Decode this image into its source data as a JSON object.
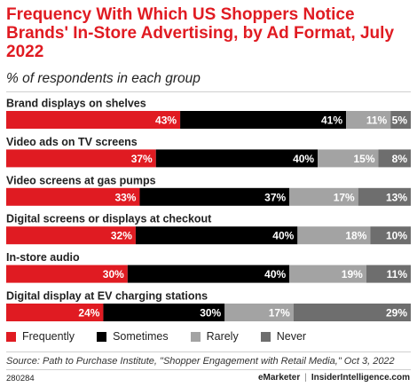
{
  "title": "Frequency With Which US Shoppers Notice Brands' In-Store Advertising, by Ad Format, July 2022",
  "subtitle": "% of respondents in each group",
  "chart_data": {
    "type": "bar",
    "orientation": "horizontal",
    "stacked": true,
    "value_format": "percent",
    "categories": [
      "Brand displays on shelves",
      "Video ads on TV screens",
      "Video screens at gas pumps",
      "Digital screens or displays at checkout",
      "In-store audio",
      "Digital display at EV charging stations"
    ],
    "series": [
      {
        "name": "Frequently",
        "color": "#e01b22",
        "values": [
          43,
          37,
          33,
          32,
          30,
          24
        ]
      },
      {
        "name": "Sometimes",
        "color": "#000000",
        "values": [
          41,
          40,
          37,
          40,
          40,
          30
        ]
      },
      {
        "name": "Rarely",
        "color": "#a3a3a3",
        "values": [
          11,
          15,
          17,
          18,
          19,
          17
        ]
      },
      {
        "name": "Never",
        "color": "#6e6e6e",
        "values": [
          5,
          8,
          13,
          10,
          11,
          29
        ]
      }
    ],
    "xlim": [
      0,
      100
    ],
    "legend_position": "bottom-left"
  },
  "legend": [
    "Frequently",
    "Sometimes",
    "Rarely",
    "Never"
  ],
  "source": "Source: Path to Purchase Institute, \"Shopper Engagement with Retail Media,\" Oct 3, 2022",
  "footer": {
    "chart_id": "280284",
    "brand_left": "eMarketer",
    "separator": "|",
    "brand_right": "InsiderIntelligence.com"
  }
}
